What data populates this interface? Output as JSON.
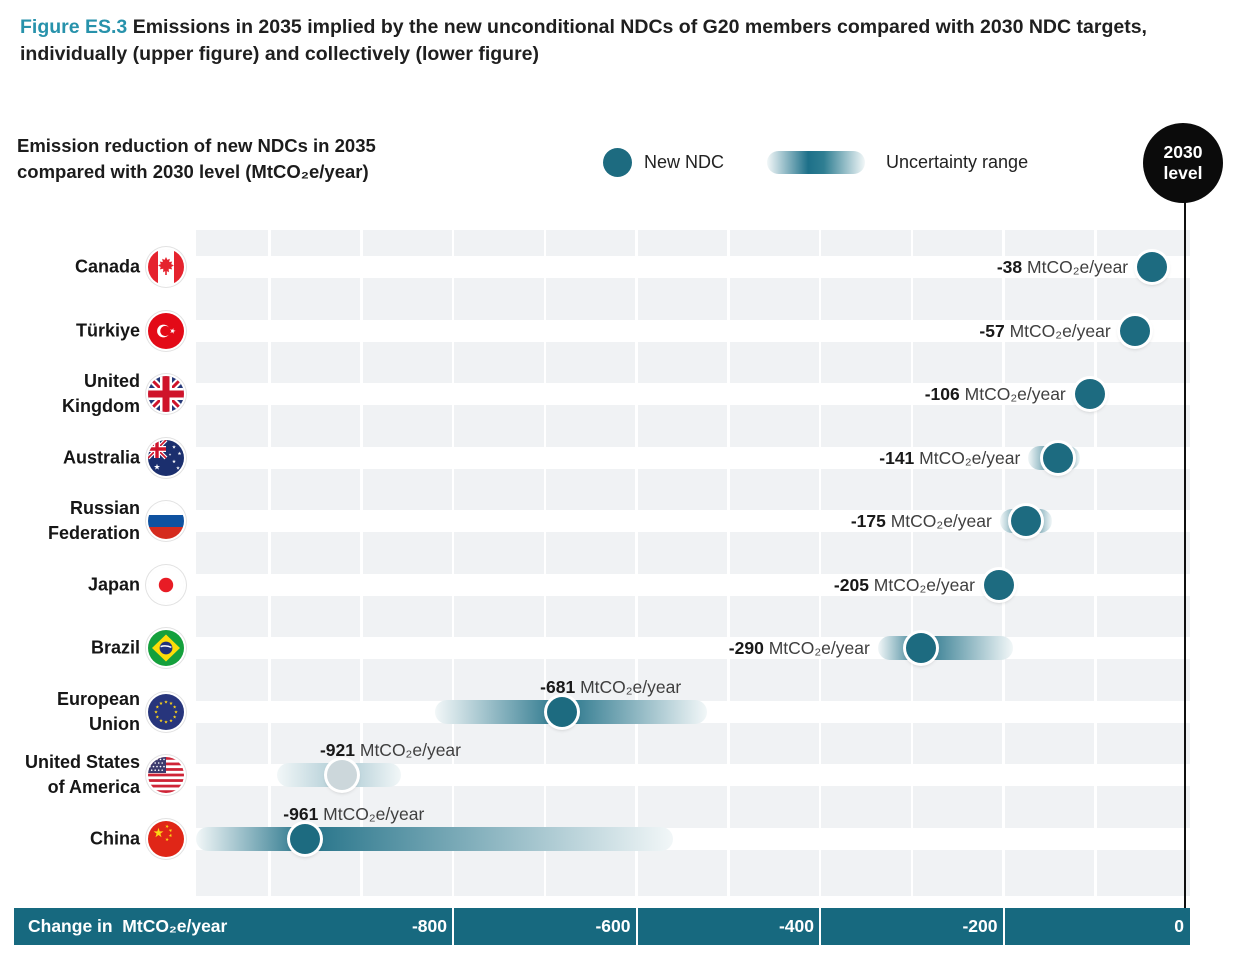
{
  "figure": {
    "tag": "Figure ES.3",
    "title": " Emissions in 2035 implied by the new unconditional NDCs of G20 members compared with 2030 NDC targets, individually (upper figure) and collectively (lower figure)"
  },
  "subtitle": "Emission reduction of new NDCs in 2035\ncompared with 2030 level (MtCO₂e/year)",
  "legend": {
    "new_ndc": "New NDC",
    "uncertainty_range": "Uncertainty range",
    "level_line1": "2030",
    "level_line2": "level"
  },
  "axis": {
    "label": "Change in  MtCO₂e/year",
    "ticks": [
      -800,
      -600,
      -400,
      -200,
      0
    ]
  },
  "colors": {
    "teal_bar": "#17697f",
    "teal_dot": "#1d6b80",
    "band_peak": "#257389",
    "band_edge": "#f2f7f8",
    "muted_dot": "#ccd7db",
    "muted_band_peak": "#accad3",
    "tile_gray": "#f0f2f4",
    "tag_teal": "#2792ab",
    "level_black": "#0b0b0b"
  },
  "chart_data": {
    "type": "scatter",
    "subtype": "dot-plot-with-uncertainty-ranges",
    "unit": "MtCO₂e/year",
    "x_range": [
      -1080,
      0
    ],
    "gridline_step": 100,
    "x_axis_label": "Change in  MtCO₂e/year",
    "x_ticks": [
      -800,
      -600,
      -400,
      -200,
      0
    ],
    "reference_line": {
      "value": 0,
      "label": "2030 level"
    },
    "countries": [
      {
        "name": "Canada",
        "flag": "ca",
        "value": -38,
        "range": null,
        "label_position": "left",
        "dot_style": "dark"
      },
      {
        "name": "Türkiye",
        "flag": "tr",
        "value": -57,
        "range": null,
        "label_position": "left",
        "dot_style": "dark"
      },
      {
        "name": "United\nKingdom",
        "flag": "gb",
        "value": -106,
        "range": null,
        "label_position": "left",
        "dot_style": "dark"
      },
      {
        "name": "Australia",
        "flag": "au",
        "value": -141,
        "range": [
          -173,
          -117
        ],
        "label_position": "left",
        "dot_style": "dark"
      },
      {
        "name": "Russian\nFederation",
        "flag": "ru",
        "value": -175,
        "range": [
          -204,
          -147
        ],
        "label_position": "left",
        "dot_style": "dark"
      },
      {
        "name": "Japan",
        "flag": "jp",
        "value": -205,
        "range": null,
        "label_position": "left",
        "dot_style": "dark"
      },
      {
        "name": "Brazil",
        "flag": "br",
        "value": -290,
        "range": [
          -337,
          -190
        ],
        "label_position": "left",
        "dot_style": "dark"
      },
      {
        "name": "European\nUnion",
        "flag": "eu",
        "value": -681,
        "range": [
          -820,
          -523
        ],
        "label_position": "above",
        "dot_style": "dark"
      },
      {
        "name": "United States\nof America",
        "flag": "us",
        "value": -921,
        "range": [
          -992,
          -857
        ],
        "label_position": "above",
        "dot_style": "light"
      },
      {
        "name": "China",
        "flag": "cn",
        "value": -961,
        "range": [
          -1080,
          -560
        ],
        "label_position": "above",
        "dot_style": "dark"
      }
    ]
  }
}
